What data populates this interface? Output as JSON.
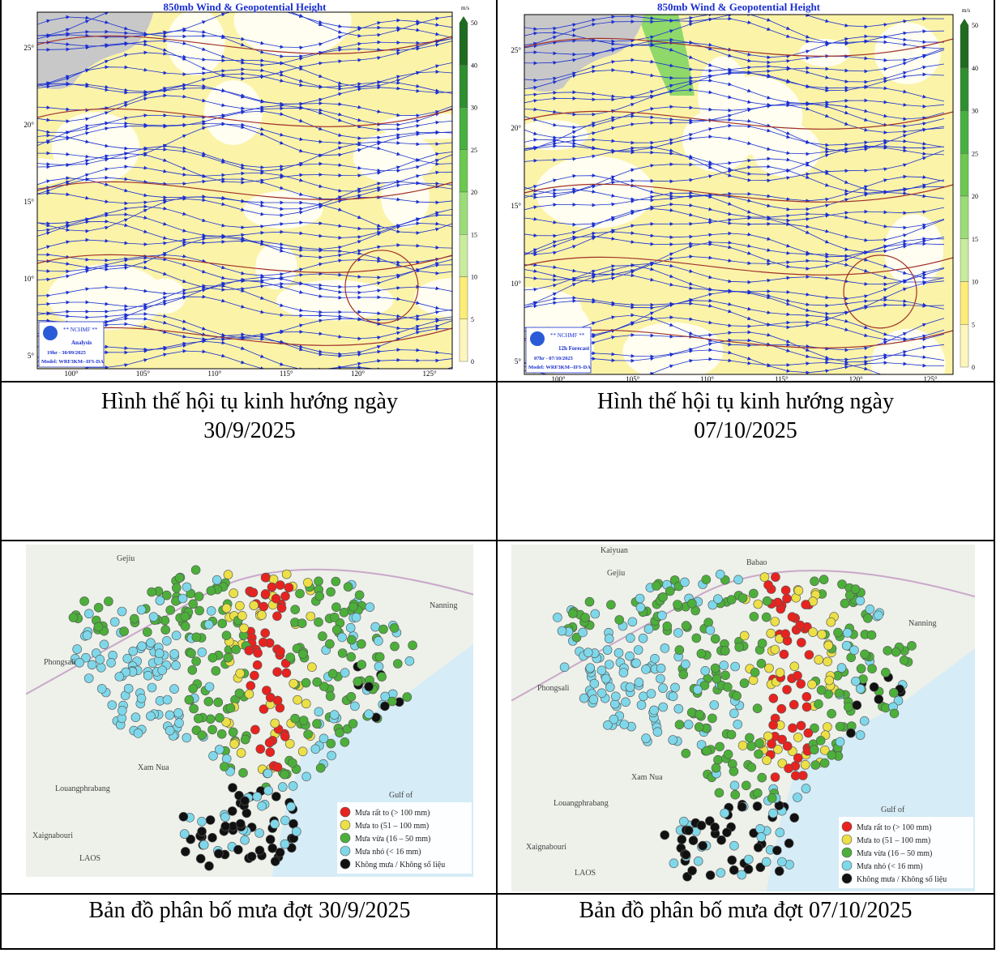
{
  "wind_maps": [
    {
      "title": "850mb Wind & Geopotential Height",
      "unit": "m/s",
      "agency": "** NCHMF **",
      "product": "Analysis",
      "time": "19hr - 30/09/2025",
      "model": "Model: WRF3KM--IFS-DA",
      "lat_labels": [
        "25°",
        "20°",
        "15°",
        "10°",
        "5°"
      ],
      "lon_labels": [
        "100°",
        "105°",
        "110°",
        "115°",
        "120°",
        "125°"
      ],
      "scale_labels": [
        "50",
        "40",
        "30",
        "25",
        "20",
        "15",
        "10",
        "5",
        "0"
      ]
    },
    {
      "title": "850mb Wind & Geopotential Height",
      "unit": "m/s",
      "agency": "** NCHMF **",
      "product": "12h Forecast",
      "time": "07hr - 07/10/2025",
      "model": "Model: WRF3KM--IFS-DA",
      "lat_labels": [
        "25°",
        "20°",
        "15°",
        "10°",
        "5°"
      ],
      "lon_labels": [
        "100°",
        "105°",
        "110°",
        "115°",
        "120°",
        "125°"
      ],
      "scale_labels": [
        "50",
        "40",
        "30",
        "25",
        "20",
        "15",
        "10",
        "5",
        "0"
      ]
    }
  ],
  "wind_captions": [
    "Hình thế hội tụ kinh hướng ngày\n30/9/2025",
    "Hình thế hội tụ kinh hướng ngày\n07/10/2025"
  ],
  "rain_maps": [
    {
      "places": [
        "Gejiu",
        "Nanning",
        "Phongsali",
        "Xam Nua",
        "Louangphrabang",
        "Xaignabouri",
        "LAOS",
        "Gulf of"
      ],
      "legend": [
        "Mưa rất to (> 100 mm)",
        "Mưa to (51 – 100 mm)",
        "Mưa vừa (16 – 50 mm)",
        "Mưa nhỏ (< 16 mm)",
        "Không mưa / Không số liệu"
      ]
    },
    {
      "places": [
        "Kaiyuan",
        "Babao",
        "Gejiu",
        "Nanning",
        "Phongsali",
        "Xam Nua",
        "Louangphrabang",
        "Xaignabouri",
        "LAOS",
        "Gulf of"
      ],
      "legend": [
        "Mưa rất to (> 100 mm)",
        "Mưa to (51 – 100 mm)",
        "Mưa vừa (16 – 50 mm)",
        "Mưa nhỏ (< 16 mm)",
        "Không mưa / Không số liệu"
      ]
    }
  ],
  "rain_captions": [
    "Bản đồ phân bố mưa đợt 30/9/2025",
    "Bản đồ phân bố mưa đợt 07/10/2025"
  ]
}
